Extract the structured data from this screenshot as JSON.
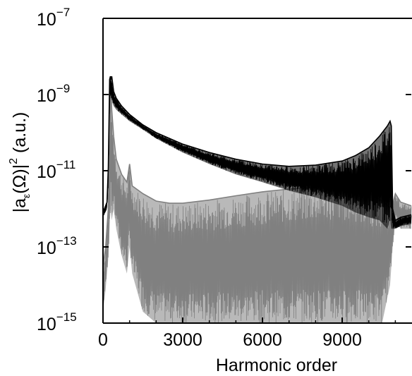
{
  "chart_data": {
    "type": "line",
    "xlabel": "Harmonic order",
    "ylabel": "|a_ε(Ω)|² (a.u.)",
    "ylabel_parts": {
      "open": "|a",
      "sub": "ε",
      "mid": "(Ω)|",
      "sup": "2",
      "unit": " (a.u.)"
    },
    "xlim": [
      0,
      11600
    ],
    "ylim": [
      1e-15,
      1e-07
    ],
    "yscale": "log",
    "grid": false,
    "x_ticks": [
      {
        "value": 0,
        "label": "0"
      },
      {
        "value": 3000,
        "label": "3000"
      },
      {
        "value": 6000,
        "label": "6000"
      },
      {
        "value": 9000,
        "label": "9000"
      }
    ],
    "y_ticks": [
      {
        "value": 1e-15,
        "base": "10",
        "exp": "−15"
      },
      {
        "value": 1e-13,
        "base": "10",
        "exp": "−13"
      },
      {
        "value": 1e-11,
        "base": "10",
        "exp": "−11"
      },
      {
        "value": 1e-09,
        "base": "10",
        "exp": "−9"
      },
      {
        "value": 1e-07,
        "base": "10",
        "exp": "−7"
      }
    ],
    "series": [
      {
        "color": "#000000",
        "x": [
          0,
          150,
          200,
          250,
          280,
          300,
          330,
          360,
          400,
          500,
          700,
          1000,
          1500,
          2000,
          3000,
          4000,
          5000,
          6000,
          7000,
          8000,
          9000,
          9500,
          10000,
          10400,
          10700,
          10800,
          10850,
          10900,
          11000,
          11200,
          11600
        ],
        "y_upper": [
          8e-13,
          1.5e-12,
          1.2e-11,
          2.5e-09,
          3e-09,
          2.5e-09,
          3e-09,
          2e-09,
          1.2e-09,
          8e-10,
          5e-10,
          3e-10,
          1.6e-10,
          1e-10,
          5e-11,
          3e-11,
          2e-11,
          1.5e-11,
          1.3e-11,
          1.4e-11,
          1.8e-11,
          2.5e-11,
          4e-11,
          8e-11,
          1.5e-10,
          2e-10,
          1.5e-10,
          1e-12,
          5e-13,
          6e-13,
          7e-13
        ],
        "y_lower": [
          6e-13,
          1e-12,
          4e-12,
          5e-10,
          1e-09,
          8e-10,
          8e-10,
          6e-10,
          5e-10,
          4e-10,
          3e-10,
          2e-10,
          1.2e-10,
          7e-11,
          3e-11,
          1.5e-11,
          8e-12,
          5e-12,
          3e-12,
          2e-12,
          1.2e-12,
          8e-13,
          6e-13,
          5e-13,
          3e-13,
          5e-13,
          3e-13,
          3e-13,
          3e-13,
          3.5e-13,
          4e-13
        ]
      },
      {
        "color": "#808080",
        "x": [
          0,
          100,
          200,
          280,
          330,
          400,
          500,
          700,
          900,
          1000,
          1100,
          1500,
          2000,
          2500,
          3000,
          4000,
          5000,
          6000,
          7000,
          8000,
          8500,
          9000,
          9500,
          10000,
          10500,
          10800,
          10900,
          11000,
          11200,
          11600
        ],
        "y_upper": [
          3e-14,
          1e-13,
          1e-12,
          3e-09,
          4e-10,
          8e-11,
          2e-11,
          8e-12,
          5e-12,
          1.5e-11,
          4e-12,
          2.5e-12,
          1.6e-12,
          1.4e-12,
          1.4e-12,
          1.7e-12,
          2.2e-12,
          2.8e-12,
          3.3e-12,
          3.7e-12,
          3.9e-12,
          3.8e-12,
          3.3e-12,
          2.6e-12,
          1.6e-12,
          1.1e-12,
          1.3e-12,
          2.5e-12,
          1.5e-12,
          1.2e-12
        ],
        "y_lower": [
          2e-15,
          8e-15,
          5e-14,
          1e-12,
          5e-13,
          1e-12,
          3e-13,
          6e-14,
          2e-14,
          1e-13,
          2e-14,
          2e-15,
          1e-15,
          1e-15,
          1e-15,
          1e-15,
          1e-15,
          1e-15,
          1e-15,
          1e-15,
          1e-15,
          1e-15,
          1e-15,
          1e-15,
          1e-15,
          1e-14,
          1e-13,
          5e-13,
          3e-13,
          3e-13
        ]
      }
    ]
  }
}
